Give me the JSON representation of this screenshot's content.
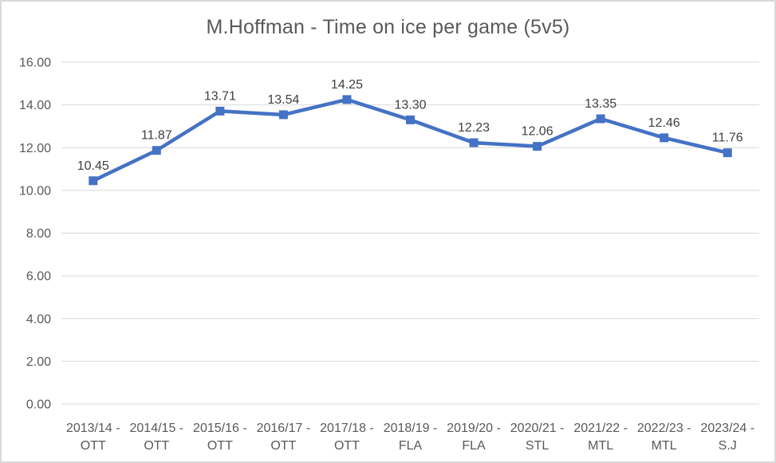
{
  "chart_data": {
    "type": "line",
    "title": "M.Hoffman - Time on ice per game (5v5)",
    "categories": [
      "2013/14 - OTT",
      "2014/15 - OTT",
      "2015/16 - OTT",
      "2016/17 - OTT",
      "2017/18 - OTT",
      "2018/19 - FLA",
      "2019/20 - FLA",
      "2020/21 - STL",
      "2021/22 - MTL",
      "2022/23 - MTL",
      "2023/24 - S.J"
    ],
    "values": [
      10.45,
      11.87,
      13.71,
      13.54,
      14.25,
      13.3,
      12.23,
      12.06,
      13.35,
      12.46,
      11.76
    ],
    "data_labels": [
      "10.45",
      "11.87",
      "13.71",
      "13.54",
      "14.25",
      "13.30",
      "12.23",
      "12.06",
      "13.35",
      "12.46",
      "11.76"
    ],
    "xlabel": "",
    "ylabel": "",
    "ylim": [
      0,
      16
    ],
    "ytick_step": 2,
    "ytick_labels": [
      "0.00",
      "2.00",
      "4.00",
      "6.00",
      "8.00",
      "10.00",
      "12.00",
      "14.00",
      "16.00"
    ],
    "grid": true,
    "legend_position": "none",
    "marker": "square",
    "colors": {
      "series": "#4472C4",
      "gridline": "#d9d9d9",
      "title_text": "#595959",
      "axis_text": "#595959",
      "data_label_text": "#404040",
      "background": "#ffffff",
      "frame_border": "#d9d9d9"
    }
  }
}
